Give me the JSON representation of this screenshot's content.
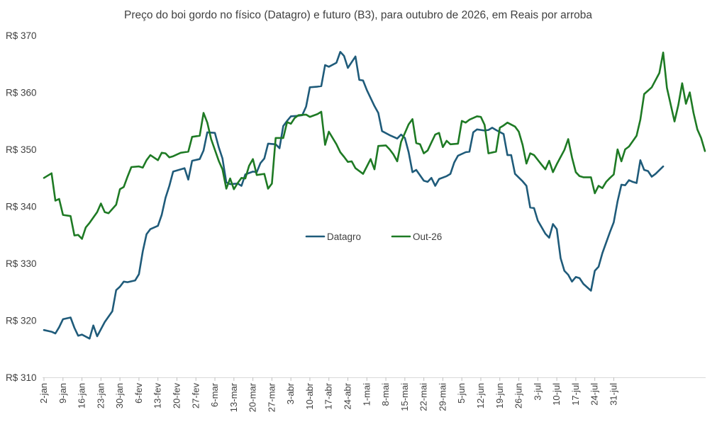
{
  "chart_data": {
    "type": "line",
    "title": "Preço do boi gordo no físico (Datagro) e futuro (B3), para outubro de 2026, em Reais por arroba",
    "xlabel": "",
    "ylabel": "",
    "ylim": [
      310,
      370
    ],
    "y_ticks": [
      370,
      360,
      350,
      340,
      330,
      320,
      310
    ],
    "y_tick_labels": [
      "R$ 370",
      "R$ 360",
      "R$ 350",
      "R$ 340",
      "R$ 330",
      "R$ 320",
      "R$ 310"
    ],
    "x_ticks": [
      "2-jan",
      "9-jan",
      "16-jan",
      "23-jan",
      "30-jan",
      "6-fev",
      "13-fev",
      "20-fev",
      "27-fev",
      "6-mar",
      "13-mar",
      "20-mar",
      "27-mar",
      "3-abr",
      "10-abr",
      "17-abr",
      "24-abr",
      "1-mai",
      "8-mai",
      "15-mai",
      "22-mai",
      "29-mai",
      "5-jun",
      "12-jun",
      "19-jun",
      "26-jun",
      "3-jul",
      "10-jul",
      "17-jul",
      "24-jul",
      "31-jul"
    ],
    "legend_position": "center",
    "grid": false,
    "series": [
      {
        "name": "Datagro",
        "color": "#1f5b7a",
        "points": [
          [
            0,
            318.3
          ],
          [
            2,
            318.0
          ],
          [
            3,
            317.7
          ],
          [
            4,
            318.8
          ],
          [
            5,
            320.2
          ],
          [
            7,
            320.5
          ],
          [
            8,
            318.7
          ],
          [
            9,
            317.3
          ],
          [
            10,
            317.5
          ],
          [
            12,
            316.8
          ],
          [
            13,
            319.1
          ],
          [
            14,
            317.2
          ],
          [
            16,
            319.7
          ],
          [
            18,
            321.6
          ],
          [
            19,
            325.3
          ],
          [
            20,
            325.9
          ],
          [
            21,
            326.8
          ],
          [
            22,
            326.7
          ],
          [
            24,
            327.0
          ],
          [
            25,
            328.1
          ],
          [
            26,
            332.1
          ],
          [
            27,
            335.1
          ],
          [
            28,
            336.0
          ],
          [
            30,
            336.6
          ],
          [
            31,
            338.5
          ],
          [
            32,
            341.5
          ],
          [
            33,
            343.6
          ],
          [
            34,
            346.1
          ],
          [
            36,
            346.5
          ],
          [
            37,
            346.7
          ],
          [
            38,
            344.7
          ],
          [
            39,
            348.0
          ],
          [
            41,
            348.3
          ],
          [
            42,
            349.8
          ],
          [
            43,
            353.0
          ],
          [
            45,
            352.9
          ],
          [
            46,
            350.4
          ],
          [
            47,
            348.4
          ],
          [
            48,
            344.2
          ],
          [
            49,
            343.9
          ],
          [
            51,
            344.0
          ],
          [
            52,
            343.6
          ],
          [
            53,
            345.6
          ],
          [
            55,
            346.1
          ],
          [
            56,
            346.0
          ],
          [
            57,
            347.6
          ],
          [
            58,
            348.4
          ],
          [
            59,
            351.0
          ],
          [
            61,
            350.9
          ],
          [
            62,
            350.2
          ],
          [
            63,
            354.1
          ],
          [
            64,
            355.0
          ],
          [
            65,
            355.8
          ],
          [
            67,
            355.9
          ],
          [
            68,
            356.0
          ],
          [
            69,
            357.5
          ],
          [
            70,
            360.9
          ],
          [
            72,
            361.0
          ],
          [
            73,
            361.1
          ],
          [
            74,
            364.8
          ],
          [
            75,
            364.5
          ],
          [
            77,
            365.2
          ],
          [
            78,
            367.1
          ],
          [
            79,
            366.4
          ],
          [
            80,
            364.3
          ],
          [
            82,
            366.3
          ],
          [
            83,
            362.2
          ],
          [
            84,
            362.1
          ],
          [
            85,
            360.4
          ],
          [
            87,
            357.6
          ],
          [
            88,
            356.4
          ],
          [
            89,
            353.2
          ],
          [
            91,
            352.5
          ],
          [
            92,
            352.2
          ],
          [
            93,
            351.9
          ],
          [
            94,
            352.6
          ],
          [
            95,
            352.0
          ],
          [
            96,
            349.5
          ],
          [
            97,
            346.0
          ],
          [
            98,
            346.4
          ],
          [
            100,
            344.5
          ],
          [
            101,
            344.3
          ],
          [
            102,
            345.0
          ],
          [
            103,
            343.6
          ],
          [
            104,
            344.8
          ],
          [
            106,
            345.3
          ],
          [
            107,
            345.7
          ],
          [
            108,
            347.7
          ],
          [
            109,
            348.9
          ],
          [
            111,
            349.5
          ],
          [
            112,
            349.6
          ],
          [
            113,
            353.0
          ],
          [
            114,
            353.5
          ],
          [
            116,
            353.3
          ],
          [
            117,
            353.4
          ],
          [
            118,
            353.8
          ],
          [
            119,
            353.4
          ],
          [
            121,
            352.7
          ],
          [
            122,
            349.0
          ],
          [
            123,
            349.0
          ],
          [
            124,
            345.7
          ],
          [
            126,
            344.4
          ],
          [
            127,
            343.6
          ],
          [
            128,
            339.8
          ],
          [
            129,
            339.7
          ],
          [
            130,
            337.5
          ],
          [
            132,
            335.2
          ],
          [
            133,
            334.5
          ],
          [
            134,
            336.9
          ],
          [
            135,
            336.0
          ],
          [
            136,
            330.9
          ],
          [
            137,
            328.7
          ],
          [
            138,
            328.0
          ],
          [
            139,
            326.8
          ],
          [
            140,
            327.6
          ],
          [
            141,
            327.4
          ],
          [
            142,
            326.4
          ],
          [
            144,
            325.2
          ],
          [
            145,
            328.7
          ],
          [
            146,
            329.4
          ],
          [
            147,
            331.8
          ],
          [
            149,
            335.5
          ],
          [
            150,
            337.2
          ],
          [
            151,
            340.9
          ],
          [
            152,
            343.8
          ],
          [
            153,
            343.7
          ],
          [
            154,
            344.6
          ],
          [
            155,
            344.3
          ],
          [
            156,
            344.1
          ],
          [
            157,
            348.1
          ],
          [
            158,
            346.4
          ],
          [
            159,
            346.2
          ],
          [
            160,
            345.2
          ],
          [
            161,
            345.7
          ],
          [
            163,
            347.0
          ]
        ]
      },
      {
        "name": "Out-26",
        "color": "#1e7a24",
        "points": [
          [
            0,
            345.0
          ],
          [
            2,
            345.8
          ],
          [
            3,
            341.0
          ],
          [
            4,
            341.3
          ],
          [
            5,
            338.5
          ],
          [
            7,
            338.3
          ],
          [
            8,
            334.9
          ],
          [
            9,
            335.0
          ],
          [
            10,
            334.3
          ],
          [
            11,
            336.3
          ],
          [
            12,
            337.1
          ],
          [
            14,
            339.0
          ],
          [
            15,
            340.5
          ],
          [
            16,
            339.0
          ],
          [
            17,
            338.8
          ],
          [
            19,
            340.3
          ],
          [
            20,
            343.0
          ],
          [
            21,
            343.4
          ],
          [
            22,
            345.2
          ],
          [
            23,
            346.9
          ],
          [
            25,
            347.0
          ],
          [
            26,
            346.8
          ],
          [
            27,
            348.1
          ],
          [
            28,
            349.0
          ],
          [
            30,
            348.1
          ],
          [
            31,
            349.4
          ],
          [
            32,
            349.3
          ],
          [
            33,
            348.6
          ],
          [
            34,
            348.8
          ],
          [
            36,
            349.4
          ],
          [
            37,
            349.5
          ],
          [
            38,
            349.6
          ],
          [
            39,
            352.2
          ],
          [
            41,
            352.4
          ],
          [
            42,
            356.4
          ],
          [
            43,
            354.7
          ],
          [
            44,
            351.8
          ],
          [
            46,
            348.0
          ],
          [
            47,
            346.5
          ],
          [
            48,
            343.1
          ],
          [
            49,
            344.9
          ],
          [
            50,
            343.0
          ],
          [
            51,
            344.1
          ],
          [
            52,
            345.0
          ],
          [
            53,
            344.9
          ],
          [
            54,
            347.1
          ],
          [
            55,
            348.3
          ],
          [
            56,
            345.5
          ],
          [
            58,
            345.7
          ],
          [
            59,
            343.1
          ],
          [
            60,
            344.0
          ],
          [
            61,
            352.0
          ],
          [
            63,
            352.0
          ],
          [
            64,
            354.8
          ],
          [
            65,
            354.5
          ],
          [
            66,
            355.5
          ],
          [
            67,
            356.0
          ],
          [
            69,
            356.1
          ],
          [
            70,
            355.7
          ],
          [
            72,
            356.2
          ],
          [
            73,
            356.6
          ],
          [
            74,
            350.8
          ],
          [
            75,
            353.1
          ],
          [
            77,
            350.9
          ],
          [
            78,
            349.5
          ],
          [
            79,
            348.7
          ],
          [
            80,
            347.8
          ],
          [
            81,
            347.9
          ],
          [
            82,
            346.7
          ],
          [
            84,
            345.7
          ],
          [
            85,
            347.0
          ],
          [
            86,
            348.3
          ],
          [
            87,
            346.5
          ],
          [
            88,
            350.6
          ],
          [
            90,
            350.7
          ],
          [
            91,
            350.0
          ],
          [
            92,
            349.1
          ],
          [
            93,
            347.9
          ],
          [
            94,
            351.3
          ],
          [
            96,
            354.4
          ],
          [
            97,
            355.3
          ],
          [
            98,
            351.1
          ],
          [
            99,
            350.9
          ],
          [
            100,
            349.3
          ],
          [
            101,
            349.8
          ],
          [
            102,
            351.2
          ],
          [
            103,
            352.6
          ],
          [
            104,
            352.9
          ],
          [
            105,
            350.4
          ],
          [
            106,
            351.5
          ],
          [
            107,
            350.9
          ],
          [
            109,
            351.0
          ],
          [
            110,
            355.0
          ],
          [
            111,
            354.7
          ],
          [
            112,
            355.2
          ],
          [
            114,
            355.8
          ],
          [
            115,
            355.7
          ],
          [
            116,
            354.3
          ],
          [
            117,
            349.3
          ],
          [
            119,
            349.6
          ],
          [
            120,
            353.8
          ],
          [
            121,
            354.2
          ],
          [
            122,
            354.7
          ],
          [
            124,
            354.0
          ],
          [
            125,
            353.1
          ],
          [
            126,
            350.8
          ],
          [
            127,
            347.5
          ],
          [
            128,
            349.3
          ],
          [
            129,
            349.0
          ],
          [
            131,
            347.3
          ],
          [
            132,
            346.5
          ],
          [
            133,
            348.0
          ],
          [
            134,
            346.0
          ],
          [
            135,
            347.4
          ],
          [
            137,
            349.9
          ],
          [
            138,
            351.8
          ],
          [
            139,
            348.6
          ],
          [
            140,
            346.0
          ],
          [
            141,
            345.3
          ],
          [
            142,
            345.1
          ],
          [
            144,
            345.1
          ],
          [
            145,
            342.3
          ],
          [
            146,
            343.6
          ],
          [
            147,
            343.2
          ],
          [
            148,
            344.3
          ],
          [
            149,
            345.0
          ],
          [
            150,
            345.6
          ],
          [
            151,
            350.0
          ],
          [
            152,
            347.9
          ],
          [
            153,
            350.0
          ],
          [
            154,
            350.5
          ],
          [
            156,
            352.4
          ],
          [
            157,
            355.2
          ],
          [
            158,
            359.7
          ],
          [
            159,
            360.3
          ],
          [
            160,
            360.9
          ],
          [
            162,
            363.4
          ],
          [
            163,
            367.0
          ],
          [
            164,
            360.8
          ],
          [
            166,
            354.9
          ],
          [
            167,
            357.8
          ],
          [
            168,
            361.6
          ],
          [
            169,
            358.0
          ],
          [
            170,
            360.0
          ],
          [
            171,
            356.4
          ],
          [
            172,
            353.5
          ],
          [
            173,
            352.0
          ],
          [
            174,
            349.7
          ]
        ]
      }
    ]
  }
}
